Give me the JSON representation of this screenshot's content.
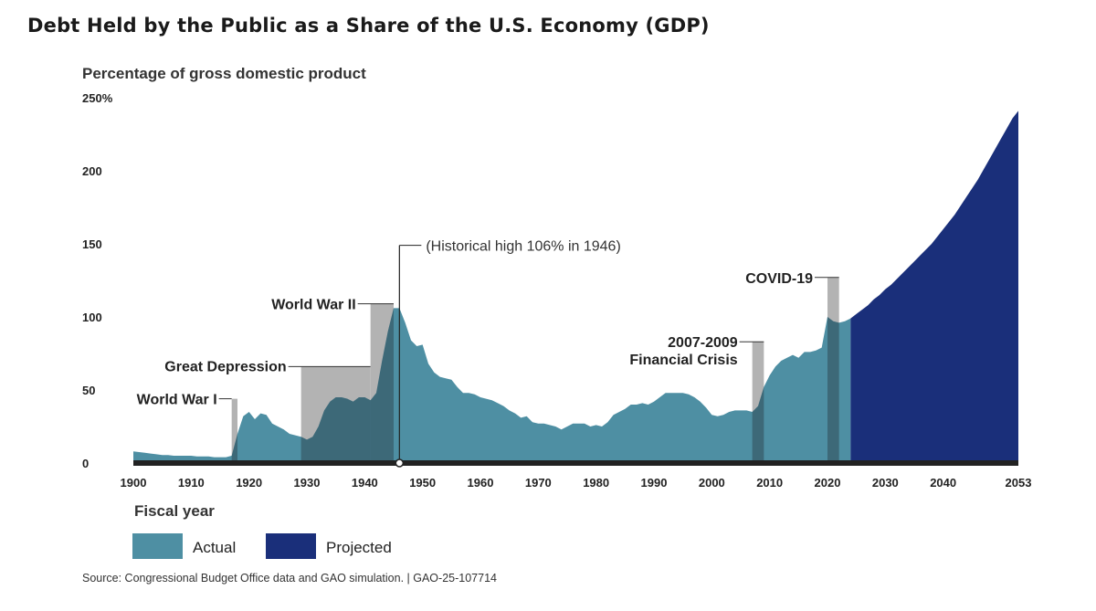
{
  "title": "Debt Held by the Public as a Share of the U.S. Economy (GDP)",
  "source": "Source: Congressional Budget Office data and GAO simulation.  |  GAO-25-107714",
  "colors": {
    "actual": "#4e8fa3",
    "projected": "#1a2f7a",
    "band": "#b3b3b3",
    "axis": "#222222"
  },
  "chart_data": {
    "type": "area",
    "title": "Debt Held by the Public as a Share of the U.S. Economy (GDP)",
    "ylabel": "Percentage of gross domestic product",
    "xlabel": "Fiscal year",
    "xlim": [
      1900,
      2053
    ],
    "ylim": [
      0,
      250
    ],
    "yticks": [
      {
        "value": 0,
        "label": "0"
      },
      {
        "value": 50,
        "label": "50"
      },
      {
        "value": 100,
        "label": "100"
      },
      {
        "value": 150,
        "label": "150"
      },
      {
        "value": 200,
        "label": "200"
      },
      {
        "value": 250,
        "label": "250%"
      }
    ],
    "xticks": [
      {
        "value": 1900,
        "label": "1900"
      },
      {
        "value": 1910,
        "label": "1910"
      },
      {
        "value": 1920,
        "label": "1920"
      },
      {
        "value": 1930,
        "label": "1930"
      },
      {
        "value": 1940,
        "label": "1940"
      },
      {
        "value": 1950,
        "label": "1950"
      },
      {
        "value": 1960,
        "label": "1960"
      },
      {
        "value": 1970,
        "label": "1970"
      },
      {
        "value": 1980,
        "label": "1980"
      },
      {
        "value": 1990,
        "label": "1990"
      },
      {
        "value": 2000,
        "label": "2000"
      },
      {
        "value": 2010,
        "label": "2010"
      },
      {
        "value": 2020,
        "label": "2020"
      },
      {
        "value": 2030,
        "label": "2030"
      },
      {
        "value": 2040,
        "label": "2040"
      },
      {
        "value": 2053,
        "label": "2053"
      }
    ],
    "series": [
      {
        "name": "Actual",
        "x": [
          1900,
          1901,
          1902,
          1903,
          1904,
          1905,
          1906,
          1907,
          1908,
          1909,
          1910,
          1911,
          1912,
          1913,
          1914,
          1915,
          1916,
          1917,
          1918,
          1919,
          1920,
          1921,
          1922,
          1923,
          1924,
          1925,
          1926,
          1927,
          1928,
          1929,
          1930,
          1931,
          1932,
          1933,
          1934,
          1935,
          1936,
          1937,
          1938,
          1939,
          1940,
          1941,
          1942,
          1943,
          1944,
          1945,
          1946,
          1947,
          1948,
          1949,
          1950,
          1951,
          1952,
          1953,
          1954,
          1955,
          1956,
          1957,
          1958,
          1959,
          1960,
          1961,
          1962,
          1963,
          1964,
          1965,
          1966,
          1967,
          1968,
          1969,
          1970,
          1971,
          1972,
          1973,
          1974,
          1975,
          1976,
          1977,
          1978,
          1979,
          1980,
          1981,
          1982,
          1983,
          1984,
          1985,
          1986,
          1987,
          1988,
          1989,
          1990,
          1991,
          1992,
          1993,
          1994,
          1995,
          1996,
          1997,
          1998,
          1999,
          2000,
          2001,
          2002,
          2003,
          2004,
          2005,
          2006,
          2007,
          2008,
          2009,
          2010,
          2011,
          2012,
          2013,
          2014,
          2015,
          2016,
          2017,
          2018,
          2019,
          2020,
          2021,
          2022,
          2023,
          2024
        ],
        "values": [
          8,
          7.5,
          7,
          6.5,
          6,
          5.5,
          5.5,
          5,
          5,
          5,
          5,
          4.5,
          4.5,
          4.5,
          4,
          4,
          4,
          5,
          20,
          32,
          35,
          30,
          34,
          33,
          27,
          25,
          23,
          20,
          19,
          18,
          16,
          18,
          25,
          36,
          42,
          45,
          45,
          44,
          42,
          45,
          45,
          43,
          48,
          70,
          90,
          106,
          106,
          96,
          84,
          80,
          81,
          68,
          62,
          59,
          58,
          57,
          52,
          48,
          48,
          47,
          45,
          44,
          43,
          41,
          39,
          36,
          34,
          31,
          32,
          28,
          27,
          27,
          26,
          25,
          23,
          25,
          27,
          27,
          27,
          25,
          26,
          25,
          28,
          33,
          35,
          37,
          40,
          40,
          41,
          40,
          42,
          45,
          48,
          48,
          48,
          48,
          47,
          45,
          42,
          38,
          33,
          32,
          33,
          35,
          36,
          36,
          36,
          35,
          39,
          52,
          60,
          66,
          70,
          72,
          74,
          72,
          76,
          76,
          77,
          79,
          100,
          97,
          96,
          97,
          99
        ]
      },
      {
        "name": "Projected",
        "x": [
          2024,
          2025,
          2026,
          2027,
          2028,
          2029,
          2030,
          2031,
          2032,
          2033,
          2034,
          2035,
          2036,
          2037,
          2038,
          2039,
          2040,
          2041,
          2042,
          2043,
          2044,
          2045,
          2046,
          2047,
          2048,
          2049,
          2050,
          2051,
          2052,
          2053
        ],
        "values": [
          99,
          102,
          105,
          108,
          112,
          115,
          119,
          122,
          126,
          130,
          134,
          138,
          142,
          146,
          150,
          155,
          160,
          165,
          170,
          176,
          182,
          188,
          194,
          201,
          208,
          215,
          222,
          229,
          236,
          241
        ]
      }
    ],
    "legend": [
      "Actual",
      "Projected"
    ],
    "annotations": {
      "bands": [
        {
          "label": "World War I",
          "start": 1917,
          "end": 1918,
          "top": 44
        },
        {
          "label": "Great Depression",
          "start": 1929,
          "end": 1941,
          "top": 66
        },
        {
          "label": "World War II",
          "start": 1941,
          "end": 1945,
          "top": 109
        },
        {
          "label": "2007-2009",
          "label2": "Financial Crisis",
          "start": 2007,
          "end": 2009,
          "top": 83
        },
        {
          "label": "COVID-19",
          "start": 2020,
          "end": 2022,
          "top": 127
        }
      ],
      "high": {
        "label": "(Historical high 106% in 1946)",
        "year": 1946,
        "value": 106,
        "label_value": 149
      }
    }
  }
}
